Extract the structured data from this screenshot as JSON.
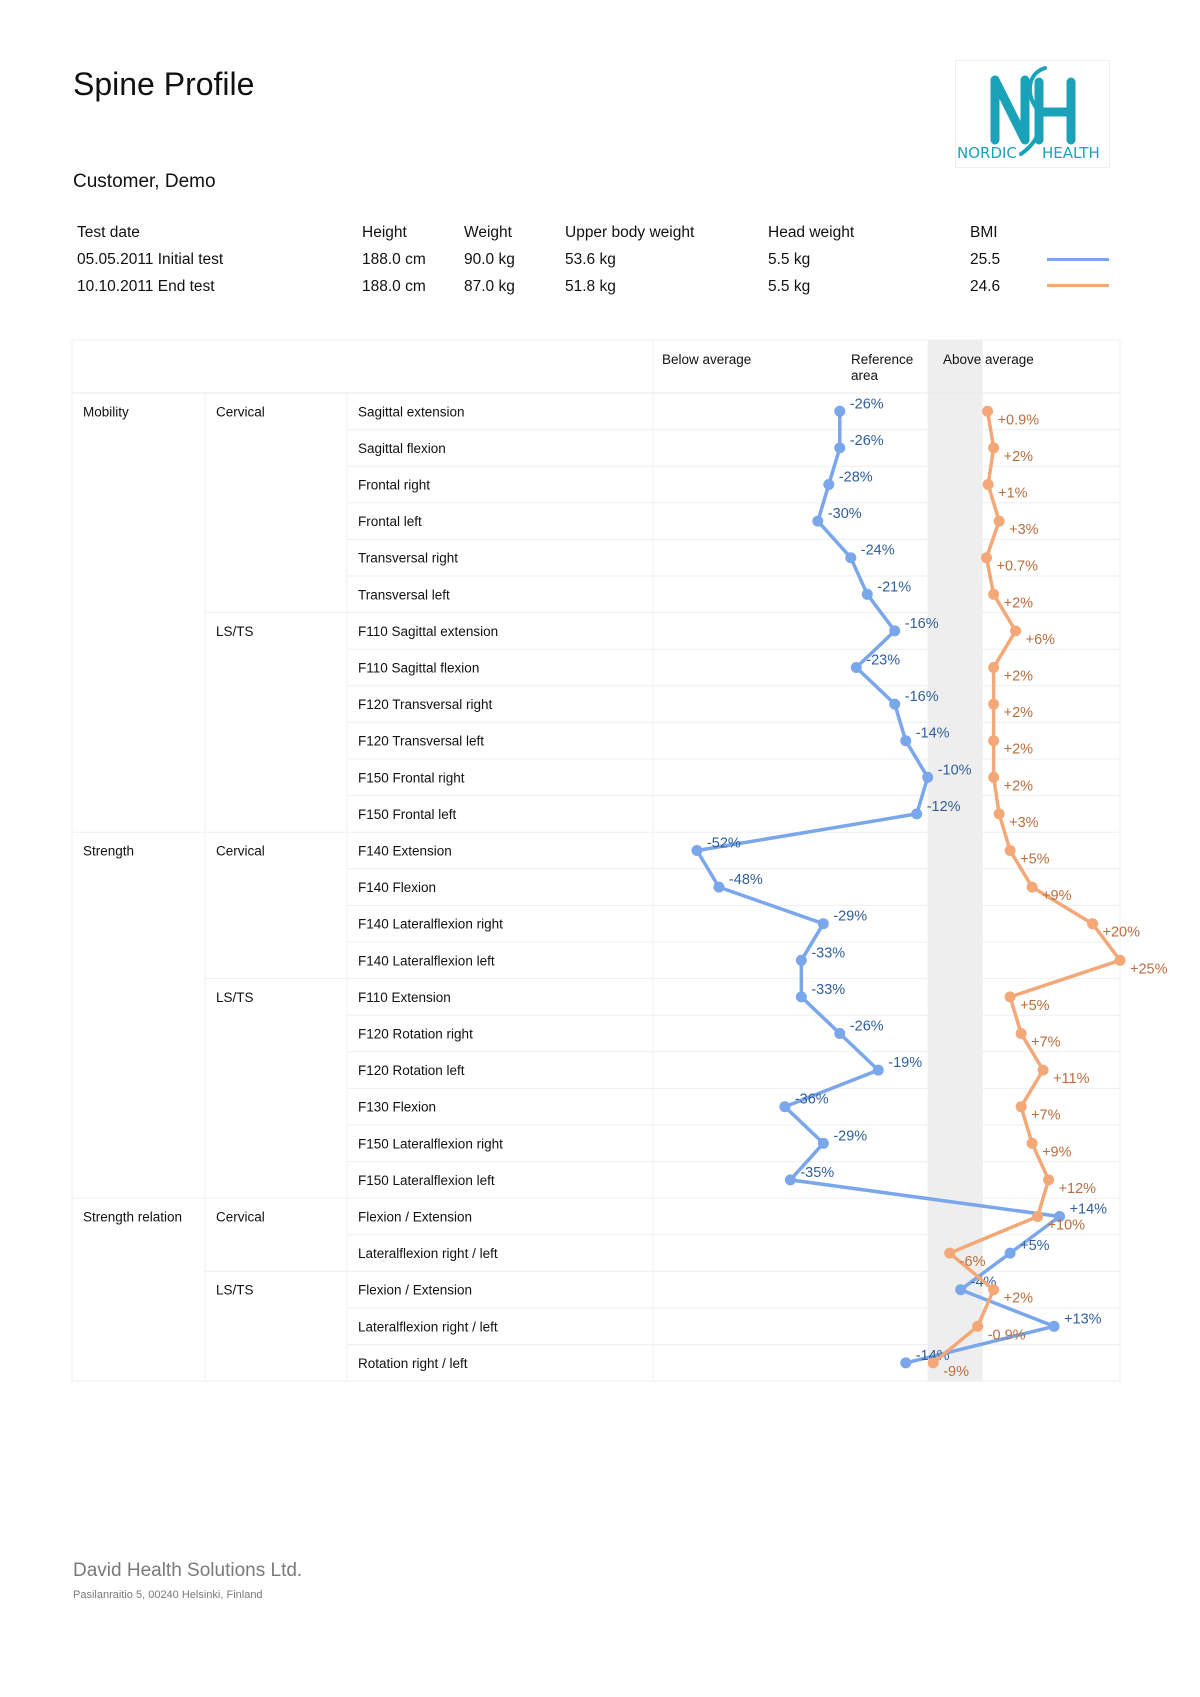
{
  "title": "Spine Profile",
  "customer": "Customer, Demo",
  "logo": {
    "text_left": "NORDIC",
    "text_right": "HEALTH",
    "color": "#1aa3b8"
  },
  "info": {
    "headers": [
      "Test date",
      "Height",
      "Weight",
      "Upper body weight",
      "Head weight",
      "BMI"
    ],
    "rows": [
      {
        "cells": [
          "05.05.2011 Initial test",
          "188.0 cm",
          "90.0 kg",
          "53.6 kg",
          "5.5 kg",
          "25.5"
        ],
        "color": "#7aa6ec"
      },
      {
        "cells": [
          "10.10.2011 End test",
          "188.0 cm",
          "87.0 kg",
          "51.8 kg",
          "5.5 kg",
          "24.6"
        ],
        "color": "#f4a878"
      }
    ]
  },
  "chart_data": {
    "type": "line",
    "zones": [
      "Below average",
      "Reference area",
      "Above average"
    ],
    "x_range": [
      -60,
      25
    ],
    "reference_range": [
      -10,
      0
    ],
    "group_labels": [
      "Mobility",
      "Strength",
      "Strength relation"
    ],
    "region_labels": [
      "Cervical",
      "LS/TS",
      "Cervical",
      "LS/TS",
      "Cervical",
      "LS/TS"
    ],
    "categories": [
      "Sagittal extension",
      "Sagittal flexion",
      "Frontal right",
      "Frontal left",
      "Transversal right",
      "Transversal left",
      "F110 Sagittal extension",
      "F110 Sagittal flexion",
      "F120 Transversal right",
      "F120 Transversal left",
      "F150 Frontal right",
      "F150 Frontal left",
      "F140 Extension",
      "F140 Flexion",
      "F140 Lateralflexion right",
      "F140 Lateralflexion left",
      "F110 Extension",
      "F120 Rotation right",
      "F120 Rotation left",
      "F130 Flexion",
      "F150 Lateralflexion right",
      "F150 Lateralflexion left",
      "Flexion / Extension",
      "Lateralflexion right / left",
      "Flexion / Extension",
      "Lateralflexion right / left",
      "Rotation right / left"
    ],
    "series": [
      {
        "color": "#7aa6ec",
        "label_color": "#2f5f9e",
        "values": [
          -26,
          -26,
          -28,
          -30,
          -24,
          -21,
          -16,
          -23,
          -16,
          -14,
          -10,
          -12,
          -52,
          -48,
          -29,
          -33,
          -33,
          -26,
          -19,
          -36,
          -29,
          -35,
          14,
          5,
          -4,
          13,
          -14
        ],
        "labels": [
          "-26%",
          "-26%",
          "-28%",
          "-30%",
          "-24%",
          "-21%",
          "-16%",
          "-23%",
          "-16%",
          "-14%",
          "-10%",
          "-12%",
          "-52%",
          "-48%",
          "-29%",
          "-33%",
          "-33%",
          "-26%",
          "-19%",
          "-36%",
          "-29%",
          "-35%",
          "+14%",
          "+5%",
          "-4%",
          "+13%",
          "-14%"
        ]
      },
      {
        "color": "#f4a878",
        "label_color": "#b86e3e",
        "values": [
          0.9,
          2,
          1,
          3,
          0.7,
          2,
          6,
          2,
          2,
          2,
          2,
          3,
          5,
          9,
          20,
          25,
          5,
          7,
          11,
          7,
          9,
          12,
          10,
          -6,
          2,
          -0.9,
          -9
        ],
        "labels": [
          "+0.9%",
          "+2%",
          "+1%",
          "+3%",
          "+0.7%",
          "+2%",
          "+6%",
          "+2%",
          "+2%",
          "+2%",
          "+2%",
          "+3%",
          "+5%",
          "+9%",
          "+20%",
          "+25%",
          "+5%",
          "+7%",
          "+11%",
          "+7%",
          "+9%",
          "+12%",
          "+10%",
          "-6%",
          "+2%",
          "-0.9%",
          "-9%"
        ]
      }
    ]
  },
  "footer": {
    "company": "David Health Solutions Ltd.",
    "address": "Pasilanraitio 5, 00240 Helsinki, Finland"
  }
}
